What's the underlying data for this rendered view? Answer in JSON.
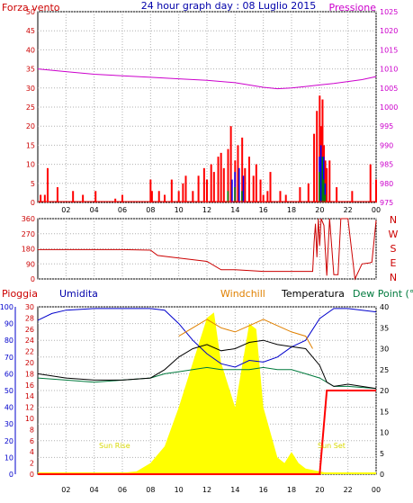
{
  "header": {
    "left_label": "Forza vento",
    "title": "24 hour graph day : 08 Luglio 2015",
    "right_label": "Pressione"
  },
  "bottom_header": {
    "pioggia": "Pioggia",
    "umidita": "Umidita",
    "windchill": "Windchill",
    "temperatura": "Temperatura",
    "dewpoint": "Dew Point (°C"
  },
  "annotations": {
    "sunrise": "Sun Rise",
    "sunset": "Sun Set"
  },
  "colors": {
    "wind": "#ff0000",
    "gust_blue": "#0000ff",
    "gust_green": "#008000",
    "pressure": "#cc00cc",
    "direction": "#cc0000",
    "humidity": "#0000cc",
    "windchill": "#e08000",
    "temperature": "#000000",
    "dewpoint": "#007a3d",
    "solar": "#ffff00",
    "rain": "#ff0000",
    "grid": "#b0b0b0"
  },
  "chart_data": [
    {
      "type": "area",
      "name": "wind_pressure",
      "x_ticks": [
        "02",
        "04",
        "06",
        "08",
        "10",
        "12",
        "14",
        "16",
        "18",
        "20",
        "22",
        "00"
      ],
      "left_axis": {
        "ticks": [
          "0",
          "5",
          "10",
          "15",
          "20",
          "25",
          "30",
          "35",
          "40",
          "45",
          "50"
        ],
        "ylim": [
          0,
          50
        ]
      },
      "right_axis": {
        "ticks": [
          "975",
          "980",
          "985",
          "990",
          "995",
          "1000",
          "1005",
          "1010",
          "1015",
          "1020",
          "1025"
        ],
        "ylim": [
          975,
          1025
        ]
      },
      "pressure": {
        "x": [
          0,
          2,
          4,
          6,
          8,
          10,
          12,
          14,
          16,
          17,
          18,
          19,
          20,
          21,
          22,
          23,
          24
        ],
        "y": [
          1010,
          1009.3,
          1008.6,
          1008.2,
          1007.8,
          1007.4,
          1007.0,
          1006.4,
          1005.2,
          1004.8,
          1005.0,
          1005.4,
          1005.8,
          1006.2,
          1006.7,
          1007.2,
          1008.0
        ]
      },
      "wind": {
        "x": [
          0.2,
          0.5,
          0.7,
          1.4,
          2.5,
          3.2,
          4.1,
          5.5,
          6.0,
          8.0,
          8.1,
          8.6,
          9.0,
          9.5,
          10.0,
          10.3,
          10.5,
          11.0,
          11.4,
          11.8,
          12.0,
          12.3,
          12.5,
          12.8,
          13.0,
          13.2,
          13.5,
          13.7,
          14.0,
          14.2,
          14.5,
          14.7,
          15.0,
          15.3,
          15.5,
          15.8,
          16.0,
          16.3,
          16.5,
          17.2,
          17.6,
          18.6,
          19.2,
          19.6,
          19.8,
          20.0,
          20.1,
          20.2,
          20.3,
          20.4,
          20.5,
          20.7,
          21.2,
          22.3,
          23.6,
          24.0
        ],
        "y": [
          2,
          2,
          9,
          4,
          3,
          2,
          3,
          1,
          2,
          6,
          3,
          3,
          2,
          6,
          3,
          5,
          7,
          3,
          7,
          9,
          6,
          10,
          8,
          12,
          13,
          9,
          14,
          20,
          11,
          15,
          17,
          9,
          12,
          7,
          10,
          6,
          2,
          3,
          8,
          3,
          2,
          4,
          5,
          18,
          24,
          28,
          20,
          27,
          15,
          11,
          9,
          11,
          4,
          3,
          10,
          6
        ]
      },
      "gust_blue": {
        "x": [
          13.8,
          14.0,
          14.3,
          14.6,
          20.0,
          20.1,
          20.2,
          20.3,
          20.4
        ],
        "y": [
          6,
          8,
          9,
          7,
          12,
          15,
          8,
          12,
          5
        ]
      },
      "gust_green": {
        "x": [
          13.5,
          14.0,
          14.5,
          20.0,
          20.2,
          20.3,
          20.4
        ],
        "y": [
          3,
          4,
          3,
          8,
          12,
          6,
          2
        ]
      }
    },
    {
      "type": "line",
      "name": "wind_direction",
      "y_ticks": [
        "0",
        "90",
        "180",
        "270",
        "360"
      ],
      "compass": [
        "N",
        "W",
        "S",
        "E",
        "N"
      ],
      "ylim": [
        0,
        360
      ],
      "x": [
        0,
        6,
        8,
        8.5,
        9,
        10,
        12,
        13,
        14,
        16,
        18,
        19.5,
        19.6,
        19.7,
        19.8,
        19.9,
        20.0,
        20.1,
        20.3,
        20.5,
        20.7,
        21.0,
        21.3,
        21.5,
        21.7,
        22.0,
        22.5,
        23.0,
        23.5,
        23.7,
        24.0
      ],
      "y": [
        175,
        175,
        172,
        140,
        135,
        125,
        105,
        55,
        55,
        45,
        45,
        45,
        220,
        330,
        130,
        360,
        200,
        360,
        320,
        20,
        360,
        25,
        25,
        360,
        360,
        360,
        0,
        90,
        95,
        100,
        350
      ]
    },
    {
      "type": "line",
      "name": "temperature_humidity_rain",
      "x_ticks": [
        "02",
        "04",
        "06",
        "08",
        "10",
        "12",
        "14",
        "16",
        "18",
        "20",
        "22",
        "00"
      ],
      "left_axis_humidity": {
        "ticks": [
          "0",
          "10",
          "20",
          "30",
          "40",
          "50",
          "60",
          "70",
          "80",
          "90",
          "100"
        ],
        "ylim": [
          0,
          100
        ]
      },
      "left_axis_rain": {
        "ticks": [
          "0",
          "2",
          "4",
          "6",
          "8",
          "10",
          "12",
          "14",
          "16",
          "18",
          "20",
          "22",
          "24",
          "26",
          "28",
          "30"
        ],
        "ylim": [
          0,
          30
        ]
      },
      "right_axis": {
        "ticks": [
          "0",
          "5",
          "10",
          "15",
          "20",
          "25",
          "30",
          "35",
          "40"
        ],
        "ylim": [
          0,
          40
        ]
      },
      "humidity": {
        "x": [
          0,
          1,
          2,
          4,
          6,
          8,
          9,
          10,
          11,
          12,
          13,
          14,
          15,
          16,
          17,
          18,
          19,
          20,
          21,
          22,
          23,
          24
        ],
        "y": [
          92,
          96,
          98,
          99,
          99,
          99,
          98,
          90,
          80,
          72,
          66,
          64,
          68,
          67,
          70,
          76,
          80,
          93,
          99,
          99,
          98,
          97
        ]
      },
      "temperature": {
        "x": [
          0,
          1,
          2,
          4,
          6,
          8,
          9,
          10,
          11,
          12,
          13,
          14,
          15,
          16,
          17,
          18,
          19,
          20,
          20.5,
          21,
          22,
          23,
          24
        ],
        "y": [
          24,
          23.5,
          23,
          22.5,
          22.5,
          23,
          25,
          28,
          30,
          31,
          29.5,
          30,
          31.5,
          32,
          31,
          30.5,
          30,
          26,
          22,
          21,
          21.5,
          21,
          20.5
        ]
      },
      "windchill": {
        "x": [
          10,
          11,
          12,
          13,
          14,
          15,
          16,
          17,
          18,
          19,
          19.5
        ],
        "y": [
          33,
          35,
          37,
          35,
          34,
          35.5,
          37,
          35.5,
          34,
          33,
          30
        ]
      },
      "dewpoint": {
        "x": [
          0,
          2,
          4,
          6,
          8,
          9,
          10,
          11,
          12,
          13,
          14,
          15,
          16,
          17,
          18,
          19,
          20,
          21,
          22,
          24
        ],
        "y": [
          23,
          22.5,
          22,
          22.5,
          23,
          24,
          24.5,
          25,
          25.5,
          25,
          25,
          25,
          25.5,
          25,
          25,
          24,
          23,
          21,
          21,
          20.5
        ]
      },
      "solar": {
        "x": [
          0,
          5,
          7,
          8,
          9,
          10,
          11,
          12,
          12.5,
          13,
          14,
          15,
          15.5,
          16,
          17,
          17.5,
          18,
          18.5,
          19,
          20,
          21,
          24
        ],
        "y": [
          0,
          0,
          0.5,
          2,
          5,
          12,
          20,
          28,
          29,
          20,
          12,
          27,
          26,
          12,
          3,
          2,
          4,
          2,
          1,
          0.5,
          0,
          0
        ]
      },
      "rain": {
        "x": [
          0,
          20,
          20.5,
          24
        ],
        "y": [
          0,
          0,
          15,
          15
        ]
      }
    }
  ]
}
